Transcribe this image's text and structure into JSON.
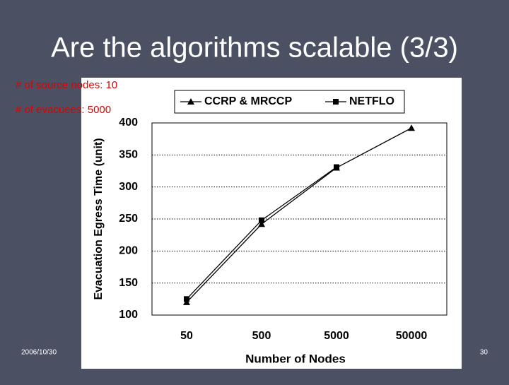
{
  "slide": {
    "title": "Are the algorithms scalable (3/3)",
    "notes": [
      "# of source nodes: 10",
      "# of evacuees: 5000"
    ],
    "date": "2006/10/30",
    "page": "30"
  },
  "chart_data": {
    "type": "line",
    "x_label": "Number of Nodes",
    "y_label": "Evacuation Egress Time (unit)",
    "categories": [
      "50",
      "500",
      "5000",
      "50000"
    ],
    "series": [
      {
        "name": "CCRP & MRCCP",
        "color": "#000000",
        "marker": "triangle",
        "values": [
          120,
          242,
          330,
          392
        ]
      },
      {
        "name": "NETFLO",
        "color": "#000000",
        "marker": "square",
        "values": [
          125,
          248,
          331,
          null
        ]
      }
    ],
    "ylim": [
      100,
      400
    ],
    "yticks": [
      100,
      150,
      200,
      250,
      300,
      350,
      400
    ],
    "grid": true
  }
}
